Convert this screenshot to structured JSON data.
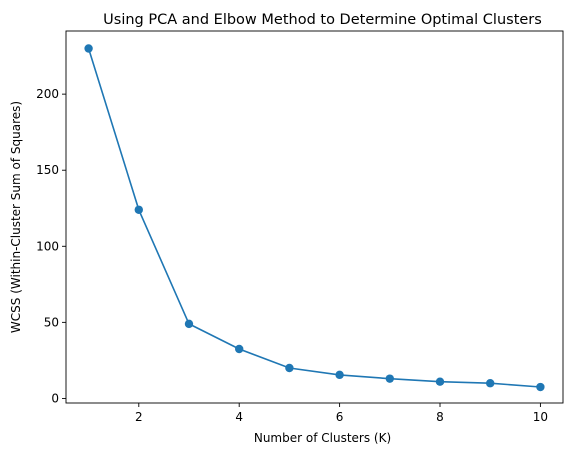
{
  "chart_data": {
    "type": "line",
    "title": "Using PCA and Elbow Method to Determine Optimal Clusters",
    "xlabel": "Number of Clusters (K)",
    "ylabel": "WCSS (Within-Cluster Sum of Squares)",
    "x": [
      1,
      2,
      3,
      4,
      5,
      6,
      7,
      8,
      9,
      10
    ],
    "series": [
      {
        "values": [
          230,
          124,
          49,
          32.5,
          20,
          15.5,
          13,
          11,
          10,
          7.5
        ],
        "color": "#1f77b4",
        "marker": "circle"
      }
    ],
    "xlim": [
      0.55,
      10.45
    ],
    "ylim": [
      -3,
      241.5
    ],
    "xticks": [
      2,
      4,
      6,
      8,
      10
    ],
    "yticks": [
      0,
      50,
      100,
      150,
      200
    ],
    "grid": false,
    "legend": "none"
  }
}
